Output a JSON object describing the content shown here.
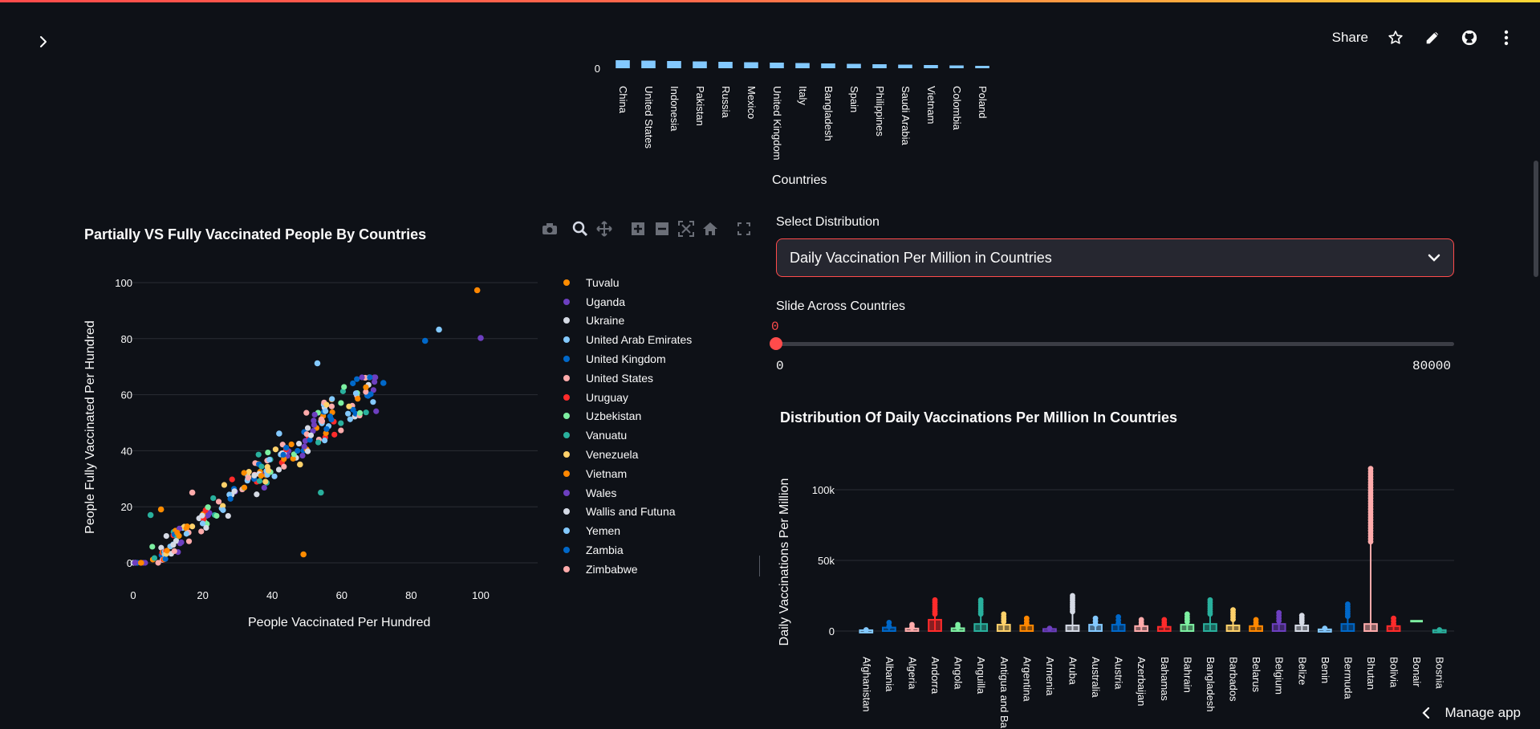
{
  "header": {
    "share_label": "Share",
    "icons": [
      "chevron-right-icon",
      "star-icon",
      "pencil-icon",
      "github-icon",
      "more-vertical-icon"
    ]
  },
  "colors": {
    "background": "#0e1117",
    "primary": "#ff4b4b",
    "text": "#fafafa",
    "grid": "#2a2d35"
  },
  "top_bar_chart": {
    "y_tick": "0",
    "xlabel": "Countries",
    "categories": [
      "China",
      "United States",
      "Indonesia",
      "Pakistan",
      "Russia",
      "Mexico",
      "United Kingdom",
      "Italy",
      "Bangladesh",
      "Spain",
      "Philippines",
      "Saudi Arabia",
      "Vietnam",
      "Colombia",
      "Poland"
    ],
    "color": "#83c9ff"
  },
  "scatter": {
    "title": "Partially VS Fully Vaccinated People By Countries",
    "xlabel": "People Vaccinated Per Hundred",
    "ylabel": "People Fully Vaccinated Per Hundred",
    "x_ticks": [
      "0",
      "20",
      "40",
      "60",
      "80",
      "100"
    ],
    "y_ticks": [
      "0",
      "20",
      "40",
      "60",
      "80",
      "100"
    ],
    "legend": [
      {
        "name": "Tuvalu",
        "color": "#ff8c00"
      },
      {
        "name": "Uganda",
        "color": "#6d3fc0"
      },
      {
        "name": "Ukraine",
        "color": "#d5dae5"
      },
      {
        "name": "United Arab Emirates",
        "color": "#83c9ff"
      },
      {
        "name": "United Kingdom",
        "color": "#0068c9"
      },
      {
        "name": "United States",
        "color": "#ffabab"
      },
      {
        "name": "Uruguay",
        "color": "#ff2b2b"
      },
      {
        "name": "Uzbekistan",
        "color": "#7defa1"
      },
      {
        "name": "Vanuatu",
        "color": "#29b09d"
      },
      {
        "name": "Venezuela",
        "color": "#ffd16a"
      },
      {
        "name": "Vietnam",
        "color": "#ff8700"
      },
      {
        "name": "Wales",
        "color": "#6d3fc0"
      },
      {
        "name": "Wallis and Futuna",
        "color": "#d5dae5"
      },
      {
        "name": "Yemen",
        "color": "#83c9ff"
      },
      {
        "name": "Zambia",
        "color": "#0068c9"
      },
      {
        "name": "Zimbabwe",
        "color": "#ffabab"
      }
    ],
    "highlight_points": [
      {
        "x": 99,
        "y": 97,
        "color": "#ff8700"
      },
      {
        "x": 100,
        "y": 80,
        "color": "#6d3fc0"
      },
      {
        "x": 88,
        "y": 83,
        "color": "#83c9ff"
      },
      {
        "x": 84,
        "y": 79,
        "color": "#0068c9"
      },
      {
        "x": 53,
        "y": 71,
        "color": "#83c9ff"
      },
      {
        "x": 49,
        "y": 3,
        "color": "#ff8c00"
      },
      {
        "x": 54,
        "y": 25,
        "color": "#29b09d"
      },
      {
        "x": 72,
        "y": 64,
        "color": "#0068c9"
      },
      {
        "x": 8,
        "y": 19,
        "color": "#ff8c00"
      },
      {
        "x": 5,
        "y": 17,
        "color": "#29b09d"
      },
      {
        "x": 17,
        "y": 25,
        "color": "#ffabab"
      },
      {
        "x": 42,
        "y": 46,
        "color": "#83c9ff"
      },
      {
        "x": 48,
        "y": 35,
        "color": "#ffd16a"
      }
    ]
  },
  "controls": {
    "select_label": "Select Distribution",
    "select_value": "Daily Vaccination Per Million in Countries",
    "slider_label": "Slide Across Countries",
    "slider_value": "0",
    "slider_min": "0",
    "slider_max": "80000"
  },
  "box_chart": {
    "title": "Distribution Of Daily Vaccinations Per Million In Countries",
    "ylabel": "Daily Vaccinations Per Million",
    "y_ticks": [
      "0",
      "50k",
      "100k"
    ],
    "categories": [
      "Afghanistan",
      "Albania",
      "Algeria",
      "Andorra",
      "Angola",
      "Anguilla",
      "Antigua and Ba",
      "Argentina",
      "Armenia",
      "Aruba",
      "Australia",
      "Austria",
      "Azerbaijan",
      "Bahamas",
      "Bahrain",
      "Bangladesh",
      "Barbados",
      "Belarus",
      "Belgium",
      "Belize",
      "Benin",
      "Bermuda",
      "Bhutan",
      "Bolivia",
      "Bonair",
      "Bosnia"
    ],
    "colors": [
      "#83c9ff",
      "#0068c9",
      "#ffabab",
      "#ff2b2b",
      "#7defa1",
      "#29b09d",
      "#ffd16a",
      "#ff8700",
      "#6d3fc0",
      "#d5dae5",
      "#83c9ff",
      "#0068c9",
      "#ffabab",
      "#ff2b2b",
      "#7defa1",
      "#29b09d",
      "#ffd16a",
      "#ff8700",
      "#6d3fc0",
      "#d5dae5",
      "#83c9ff",
      "#0068c9",
      "#ffabab",
      "#ff2b2b",
      "#7defa1",
      "#29b09d"
    ]
  },
  "footer": {
    "manage_app_label": "Manage app"
  }
}
